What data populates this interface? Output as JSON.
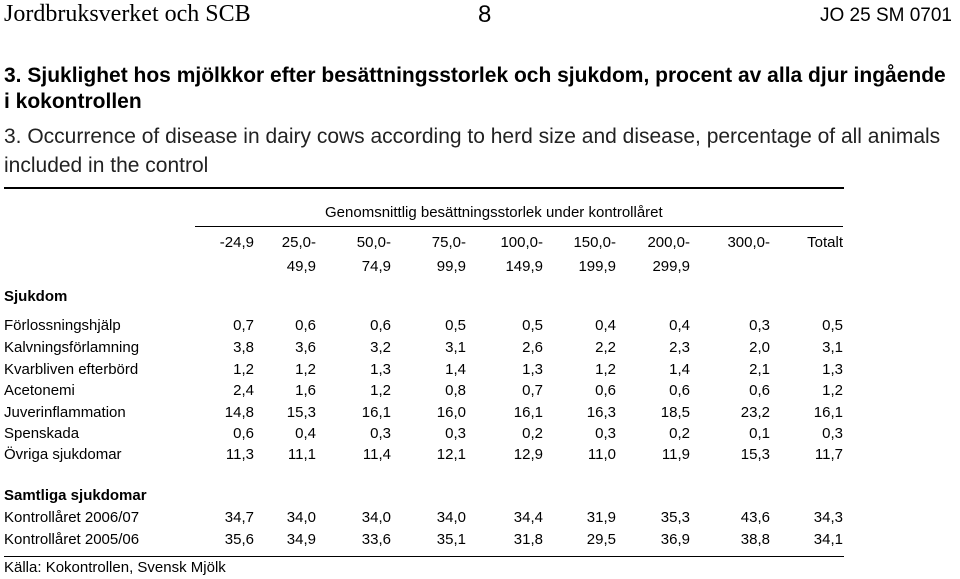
{
  "header": {
    "left": "Jordbruksverket och SCB",
    "page": "8",
    "right": "JO 25 SM 0701"
  },
  "title_sv": "3. Sjuklighet hos mjölkkor efter besättningsstorlek och sjukdom, procent av alla djur ingående i kokontrollen",
  "title_en": "3. Occurrence of disease in dairy cows according to herd size and disease, percentage of all animals included in the control",
  "table": {
    "group_header": "Genomsnittlig besättningsstorlek under kontrollåret",
    "row_header": "Sjukdom",
    "columns": [
      {
        "l1": "-24,9",
        "l2": ""
      },
      {
        "l1": "25,0-",
        "l2": "49,9"
      },
      {
        "l1": "50,0-",
        "l2": "74,9"
      },
      {
        "l1": "75,0-",
        "l2": "99,9"
      },
      {
        "l1": "100,0-",
        "l2": "149,9"
      },
      {
        "l1": "150,0-",
        "l2": "199,9"
      },
      {
        "l1": "200,0-",
        "l2": "299,9"
      },
      {
        "l1": "300,0-",
        "l2": ""
      },
      {
        "l1": "Totalt",
        "l2": ""
      }
    ],
    "rows": [
      {
        "label": "Förlossningshjälp",
        "values": [
          "0,7",
          "0,6",
          "0,6",
          "0,5",
          "0,5",
          "0,4",
          "0,4",
          "0,3",
          "0,5"
        ]
      },
      {
        "label": "Kalvningsförlamning",
        "values": [
          "3,8",
          "3,6",
          "3,2",
          "3,1",
          "2,6",
          "2,2",
          "2,3",
          "2,0",
          "3,1"
        ]
      },
      {
        "label": "Kvarbliven efterbörd",
        "values": [
          "1,2",
          "1,2",
          "1,3",
          "1,4",
          "1,3",
          "1,2",
          "1,4",
          "2,1",
          "1,3"
        ]
      },
      {
        "label": "Acetonemi",
        "values": [
          "2,4",
          "1,6",
          "1,2",
          "0,8",
          "0,7",
          "0,6",
          "0,6",
          "0,6",
          "1,2"
        ]
      },
      {
        "label": "Juverinflammation",
        "values": [
          "14,8",
          "15,3",
          "16,1",
          "16,0",
          "16,1",
          "16,3",
          "18,5",
          "23,2",
          "16,1"
        ]
      },
      {
        "label": "Spenskada",
        "values": [
          "0,6",
          "0,4",
          "0,3",
          "0,3",
          "0,2",
          "0,3",
          "0,2",
          "0,1",
          "0,3"
        ]
      },
      {
        "label": "Övriga sjukdomar",
        "values": [
          "11,3",
          "11,1",
          "11,4",
          "12,1",
          "12,9",
          "11,0",
          "11,9",
          "15,3",
          "11,7"
        ]
      }
    ],
    "total_header": "Samtliga sjukdomar",
    "totals": [
      {
        "label": "Kontrollåret 2006/07",
        "values": [
          "34,7",
          "34,0",
          "34,0",
          "34,0",
          "34,4",
          "31,9",
          "35,3",
          "43,6",
          "34,3"
        ]
      },
      {
        "label": "Kontrollåret 2005/06",
        "values": [
          "35,6",
          "34,9",
          "33,6",
          "35,1",
          "31,8",
          "29,5",
          "36,9",
          "38,8",
          "34,1"
        ]
      }
    ]
  },
  "source": "Källa: Kokontrollen, Svensk Mjölk"
}
